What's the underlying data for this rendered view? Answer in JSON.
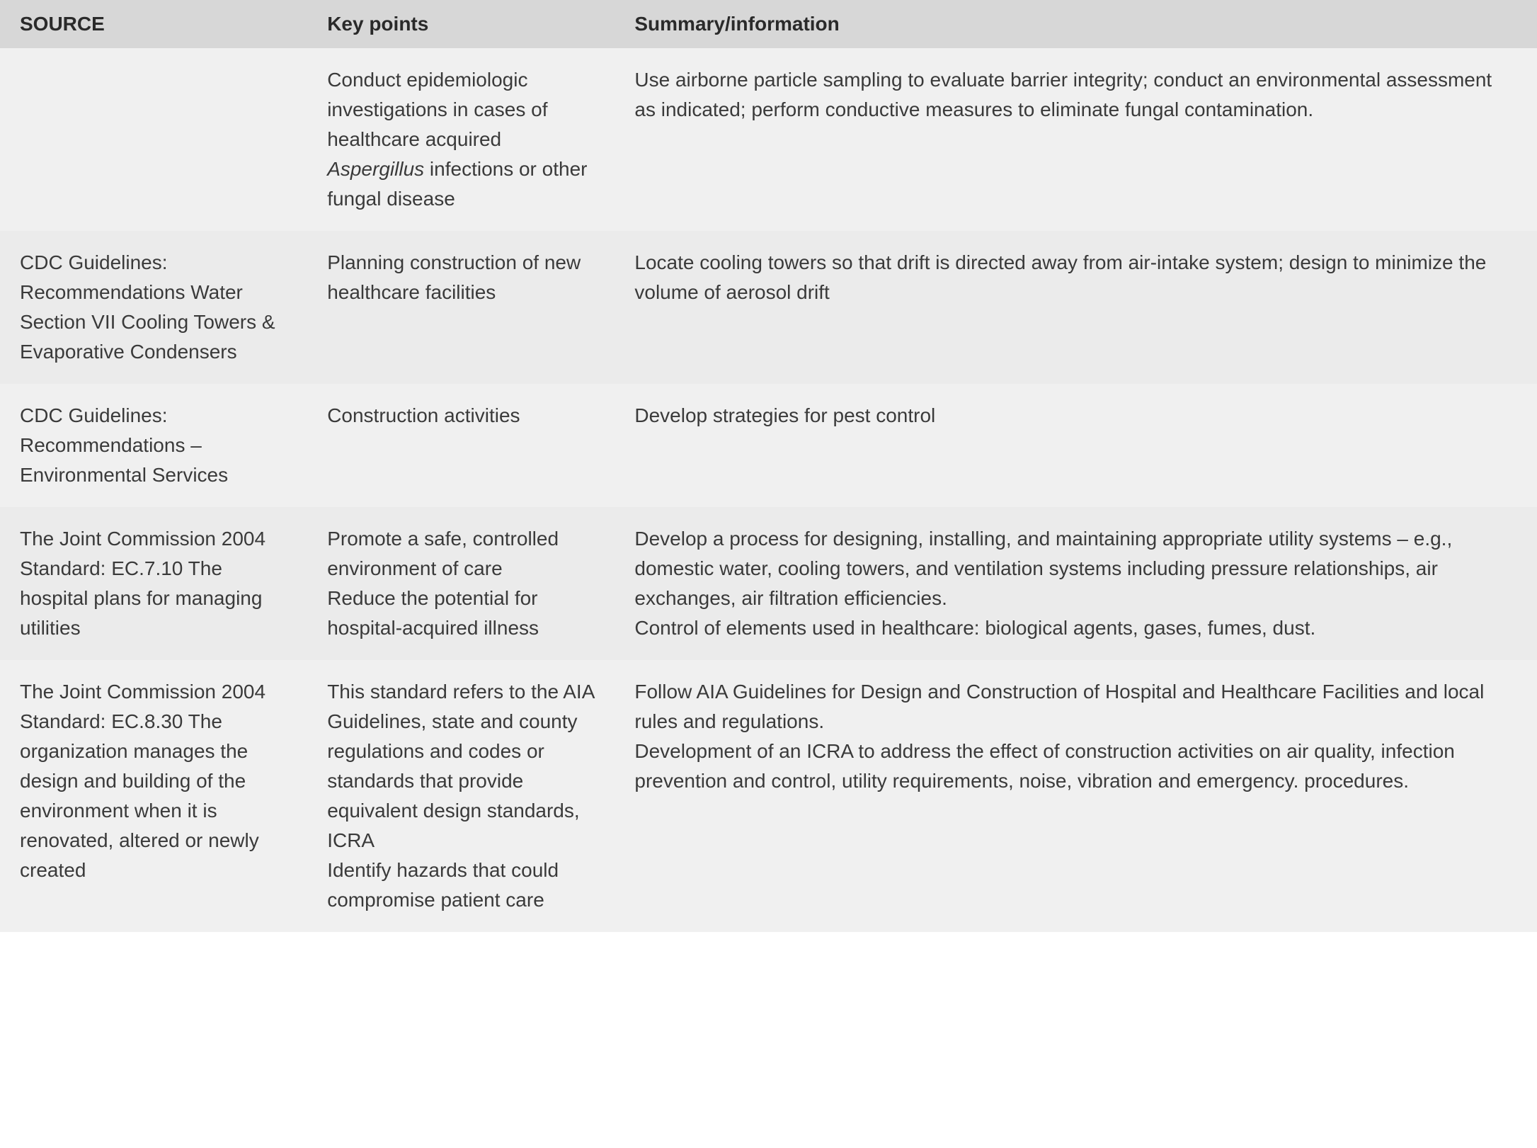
{
  "table": {
    "headers": {
      "source": "SOURCE",
      "key_points": "Key points",
      "summary": "Summary/information"
    },
    "rows": [
      {
        "source": "",
        "key_points_before": "Conduct epidemiologic investigations in cases of healthcare acquired ",
        "key_points_italic": "Aspergillus",
        "key_points_after": " infections or other fungal disease",
        "summary": "Use airborne particle sampling to evaluate barrier integrity; conduct an environmental assessment as indicated; perform conductive measures to eliminate fungal contamination.",
        "shade": "light"
      },
      {
        "source": "CDC Guidelines: Recommendations Water Section VII Cooling Towers & Evaporative Condensers",
        "key_points": "Planning construction of new healthcare facilities",
        "summary": "Locate cooling towers so that drift is directed away from air-intake system; design to minimize the volume of aerosol drift",
        "shade": "dark"
      },
      {
        "source": "CDC Guidelines: Recommendations – Environmental Services",
        "key_points": "Construction activities",
        "summary": "Develop strategies for pest control",
        "shade": "light"
      },
      {
        "source": "The Joint Commission 2004 Standard: EC.7.10 The hospital plans for managing utilities",
        "key_points_line1": "Promote a safe, controlled environment of care",
        "key_points_line2": "Reduce the potential for hospital-acquired illness",
        "summary_line1": "Develop a process for designing, installing, and maintaining appropriate utility systems – e.g., domestic water, cooling towers, and ventilation systems including pressure relationships, air exchanges, air filtration efficiencies.",
        "summary_line2": "Control of elements used in healthcare: biological agents, gases, fumes, dust.",
        "shade": "dark"
      },
      {
        "source": "The Joint Commission 2004 Standard: EC.8.30 The organization manages the design and building of the environment when it is renovated, altered or newly created",
        "key_points_line1": "This standard refers to the AIA Guidelines, state and county regulations and codes or standards that provide equivalent design standards, ICRA",
        "key_points_line2": "Identify hazards that could compromise patient care",
        "summary_line1": "Follow AIA Guidelines for Design and Construction of Hospital and Healthcare Facilities and local rules and regulations.",
        "summary_line2": "Development of an ICRA to address the effect of construction activities on air quality, infection prevention and control, utility requirements, noise, vibration and emergency. procedures.",
        "shade": "light"
      }
    ],
    "styling": {
      "header_bg": "#d7d7d7",
      "row_light_bg": "#f0f0f0",
      "row_dark_bg": "#ebebeb",
      "font_size": 28,
      "header_font_weight": 700,
      "cell_font_weight": 300,
      "text_color": "#3a3a3a",
      "header_text_color": "#2a2a2a",
      "col_widths": [
        "20%",
        "20%",
        "60%"
      ]
    }
  }
}
